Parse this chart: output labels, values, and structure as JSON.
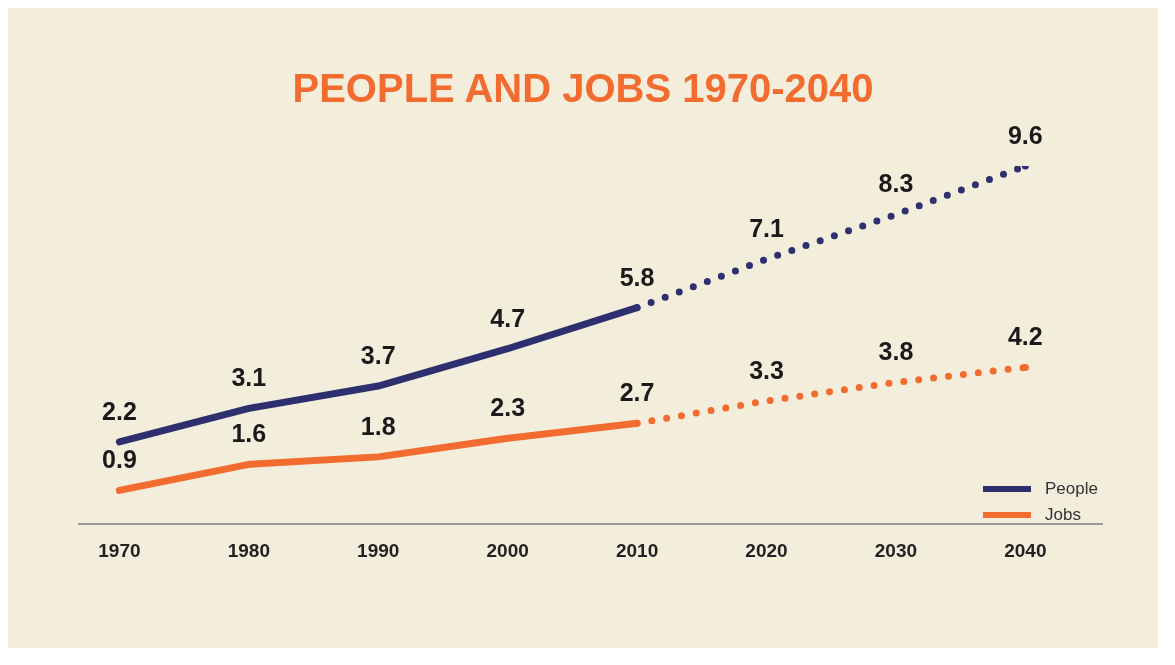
{
  "chart_data": {
    "type": "line",
    "title": "PEOPLE AND JOBS 1970-2040",
    "categories": [
      "1970",
      "1980",
      "1990",
      "2000",
      "2010",
      "2020",
      "2030",
      "2040"
    ],
    "series": [
      {
        "name": "People",
        "color": "#2e2f6e",
        "line_style": "solid",
        "values": [
          2.2,
          3.1,
          3.7,
          4.7,
          5.8,
          null,
          null,
          null
        ],
        "value_labels": [
          "2.2",
          "3.1",
          "3.7",
          "4.7",
          "5.8",
          null,
          null,
          null
        ]
      },
      {
        "color": "#2e2f6e",
        "line_style": "dotted",
        "values": [
          null,
          null,
          null,
          null,
          5.8,
          7.1,
          8.3,
          9.6
        ],
        "value_labels": [
          null,
          null,
          null,
          null,
          null,
          "7.1",
          "8.3",
          "9.6"
        ]
      },
      {
        "name": "Jobs",
        "color": "#f26b2f",
        "line_style": "solid",
        "values": [
          0.9,
          1.6,
          1.8,
          2.3,
          2.7,
          null,
          null,
          null
        ],
        "value_labels": [
          "0.9",
          "1.6",
          "1.8",
          "2.3",
          "2.7",
          null,
          null,
          null
        ]
      },
      {
        "color": "#f26b2f",
        "line_style": "dotted",
        "values": [
          null,
          null,
          null,
          null,
          2.7,
          3.3,
          3.8,
          4.2
        ],
        "value_labels": [
          null,
          null,
          null,
          null,
          null,
          "3.3",
          "3.8",
          "4.2"
        ]
      }
    ],
    "grid": false,
    "legend": "right",
    "marker": "none"
  }
}
